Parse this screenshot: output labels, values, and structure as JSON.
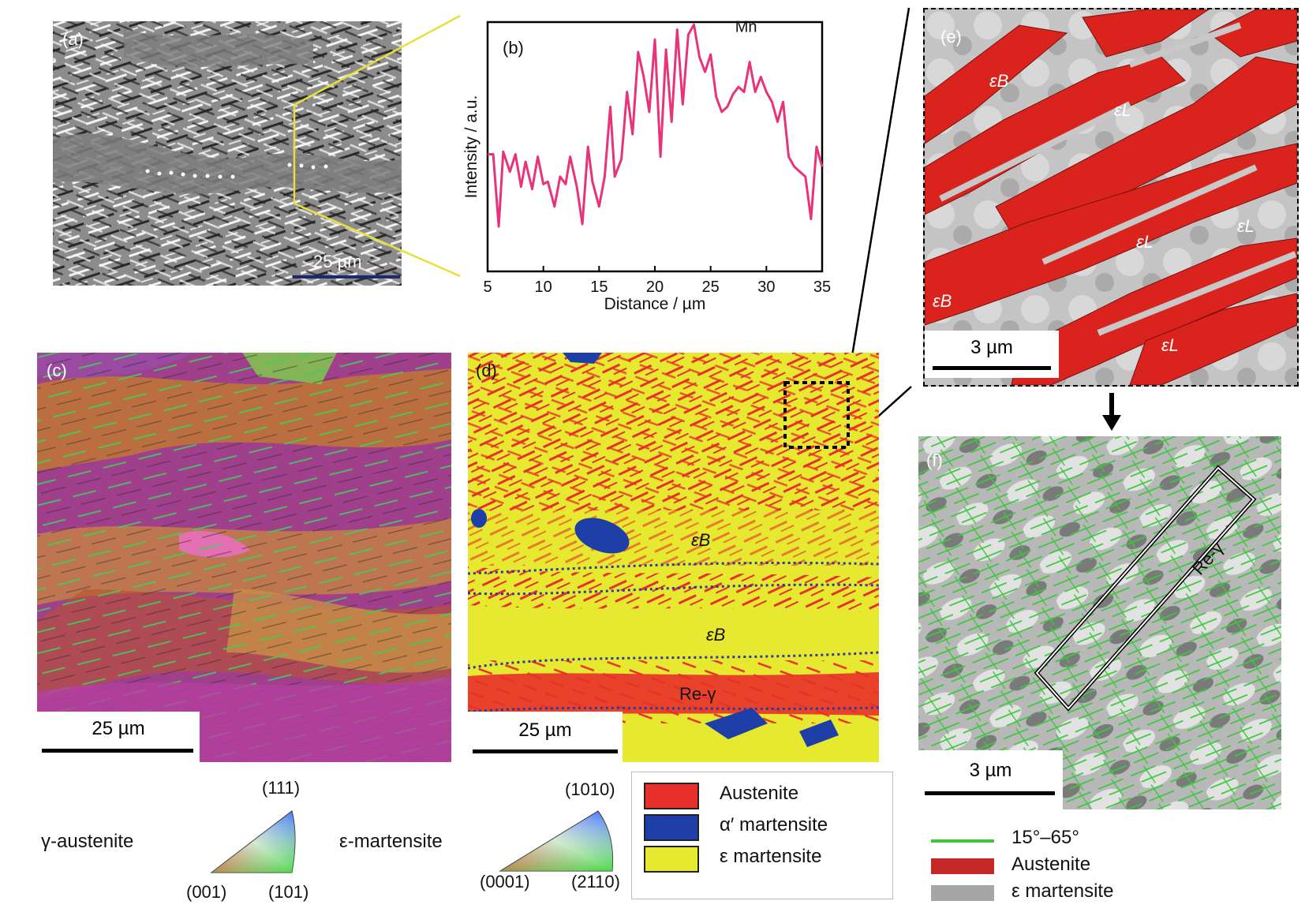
{
  "panels": {
    "a": {
      "label": "(a)",
      "scale": "25 µm"
    },
    "b": {
      "label": "(b)"
    },
    "c": {
      "label": "(c)",
      "scale": "25 µm"
    },
    "d": {
      "label": "(d)",
      "scale": "25 µm",
      "eps_b_1": "εB",
      "eps_b_2": "εB",
      "re_gamma": "Re-γ"
    },
    "e": {
      "label": "(e)",
      "scale": "3 µm",
      "eps_b_1": "εB",
      "eps_b_2": "εB",
      "eps_l_1": "εL",
      "eps_l_2": "εL",
      "eps_l_3": "εL",
      "eps_l_4": "εL"
    },
    "f": {
      "label": "(f)",
      "scale": "3 µm",
      "re_gamma": "Re-γ"
    }
  },
  "chart_data": {
    "type": "line",
    "title": "",
    "annotation": "Mn",
    "xlabel": "Distance / µm",
    "ylabel": "Intensity / a.u.",
    "xlim": [
      5,
      35
    ],
    "ylim": [
      0,
      1
    ],
    "xticks": [
      "5",
      "10",
      "15",
      "20",
      "25",
      "30",
      "35"
    ],
    "series": [
      {
        "name": "Mn",
        "color": "#e8327a",
        "x": [
          5,
          5.5,
          6,
          6.4,
          7,
          7.5,
          8,
          8.4,
          9,
          9.5,
          10,
          10.4,
          11,
          11.5,
          12,
          12.4,
          13,
          13.5,
          14,
          14.4,
          15,
          15.5,
          16,
          16.4,
          17,
          17.5,
          18,
          18.5,
          19,
          19.5,
          20,
          20.5,
          21,
          21.5,
          22,
          22.5,
          23,
          23.5,
          24,
          24.5,
          25,
          25.5,
          26,
          26.5,
          27,
          27.5,
          28,
          28.5,
          29,
          29.5,
          30,
          30.5,
          31,
          31.5,
          32,
          32.5,
          33,
          33.5,
          34,
          34.5,
          35
        ],
        "y": [
          0.47,
          0.47,
          0.18,
          0.48,
          0.4,
          0.47,
          0.34,
          0.44,
          0.33,
          0.46,
          0.35,
          0.36,
          0.26,
          0.38,
          0.35,
          0.46,
          0.34,
          0.19,
          0.5,
          0.36,
          0.26,
          0.38,
          0.66,
          0.38,
          0.45,
          0.72,
          0.55,
          0.88,
          0.78,
          0.64,
          0.93,
          0.46,
          0.89,
          0.6,
          0.97,
          0.67,
          0.95,
          0.99,
          0.86,
          0.8,
          0.87,
          0.7,
          0.64,
          0.66,
          0.71,
          0.74,
          0.72,
          0.84,
          0.72,
          0.78,
          0.72,
          0.68,
          0.6,
          0.68,
          0.46,
          0.42,
          0.4,
          0.38,
          0.21,
          0.5,
          0.42
        ]
      }
    ]
  },
  "legends": {
    "ipf_gamma": {
      "name": "γ-austenite",
      "top": "(111)",
      "left": "(001)",
      "right": "(101)"
    },
    "ipf_eps": {
      "name": "ε-martensite",
      "top": "(1010)",
      "left": "(0001)",
      "right": "(2110)"
    },
    "phases": [
      {
        "label": "Austenite",
        "color": "#e8302a"
      },
      {
        "label": "α′ martensite",
        "color": "#1f3fa8"
      },
      {
        "label": "ε martensite",
        "color": "#e6e92f"
      }
    ],
    "panel_f": [
      {
        "label": "15°–65°",
        "color": "#3cc83c"
      },
      {
        "label": "Austenite",
        "color": "#c62828"
      },
      {
        "label": "ε martensite",
        "color": "#a6a6a6"
      }
    ]
  }
}
